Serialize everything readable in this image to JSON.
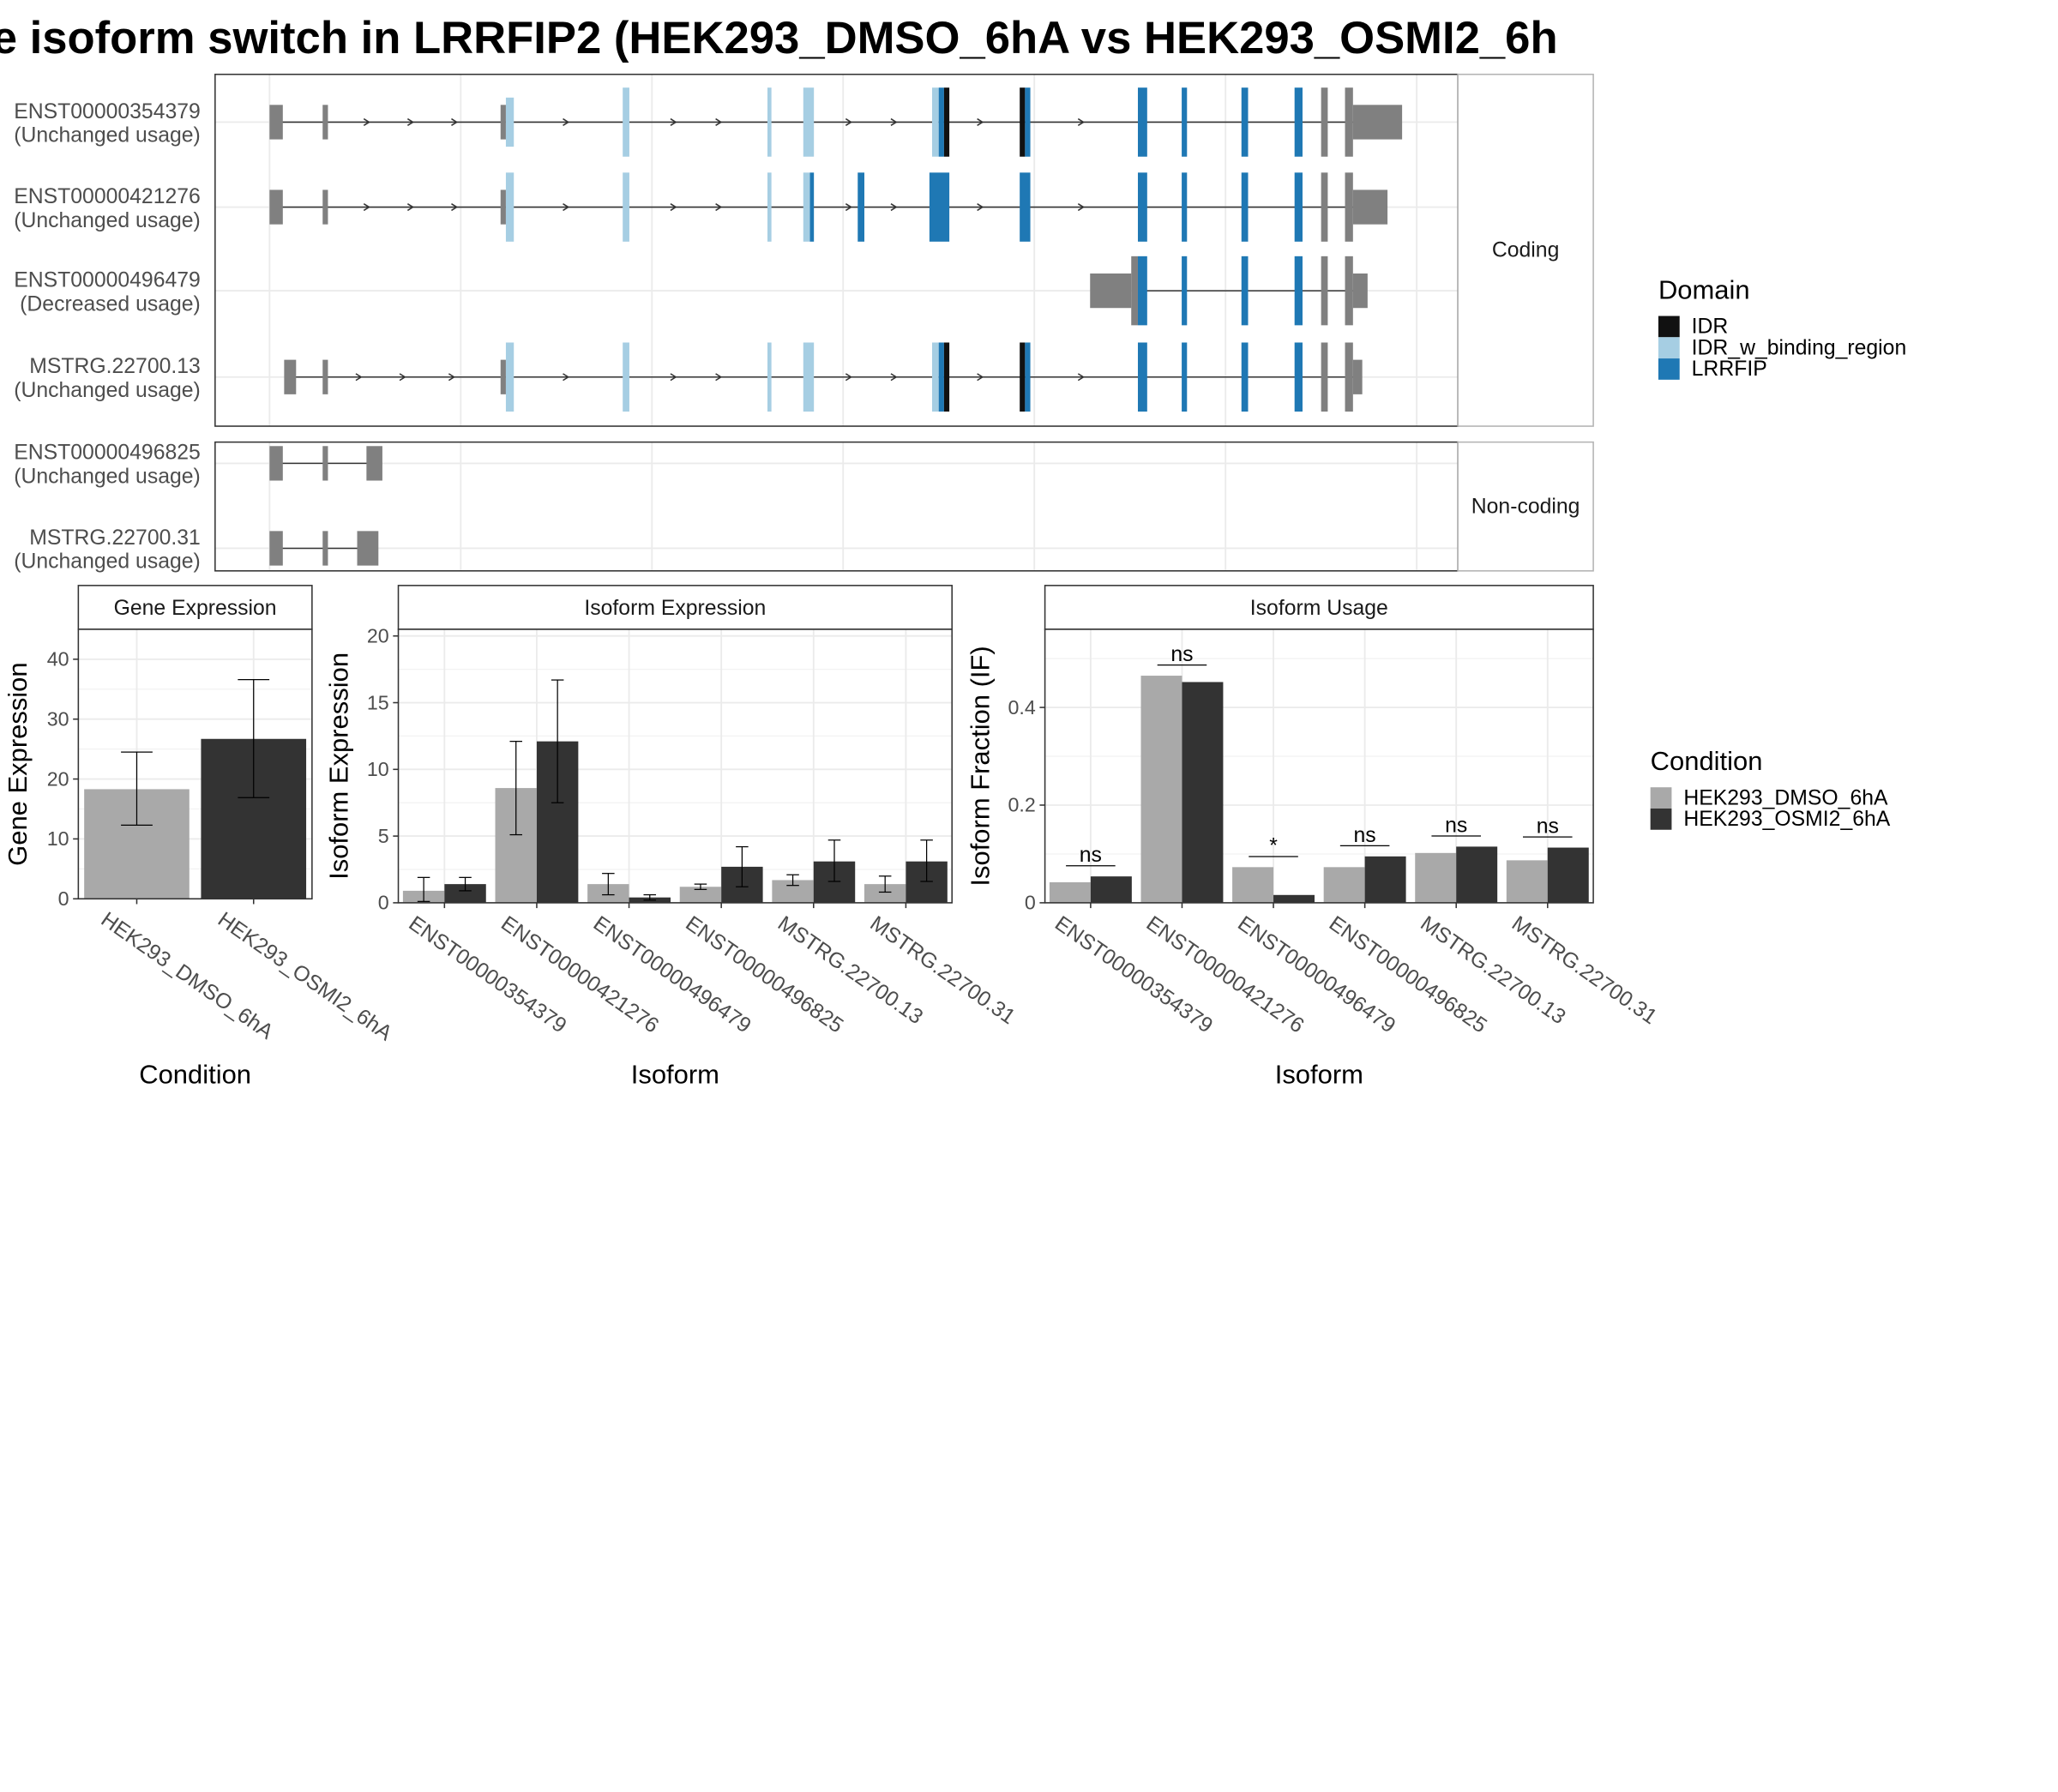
{
  "title": "e isoform switch in LRRFIP2 (HEK293_DMSO_6hA vs HEK293_OSMI2_6h",
  "colors": {
    "IDR": "#111111",
    "IDR_w_binding_region": "#a6cee3",
    "LRRFIP": "#1f78b4",
    "exon": "#808080",
    "DMSO": "#a9a9a9",
    "OSMI2": "#333333"
  },
  "structure": {
    "coding_label": "Coding",
    "noncoding_label": "Non-coding",
    "coding": [
      {
        "id": "ENST00000354379",
        "usage": "(Unchanged usage)"
      },
      {
        "id": "ENST00000421276",
        "usage": "(Unchanged usage)"
      },
      {
        "id": "ENST00000496479",
        "usage": "(Decreased usage)"
      },
      {
        "id": "MSTRG.22700.13",
        "usage": "(Unchanged usage)"
      }
    ],
    "noncoding": [
      {
        "id": "ENST00000496825",
        "usage": "(Unchanged usage)"
      },
      {
        "id": "MSTRG.22700.31",
        "usage": "(Unchanged usage)"
      }
    ]
  },
  "domain_legend": {
    "title": "Domain",
    "items": [
      "IDR",
      "IDR_w_binding_region",
      "LRRFIP"
    ]
  },
  "condition_legend": {
    "title": "Condition",
    "items": [
      "HEK293_DMSO_6hA",
      "HEK293_OSMI2_6hA"
    ]
  },
  "chart_data": [
    {
      "type": "bar",
      "title": "Gene Expression",
      "xlabel": "Condition",
      "ylabel": "Gene Expression",
      "ylim": [
        0,
        45
      ],
      "yticks": [
        0,
        10,
        20,
        30,
        40
      ],
      "categories": [
        "HEK293_DMSO_6hA",
        "HEK293_OSMI2_6hA"
      ],
      "values": [
        18.3,
        26.7
      ],
      "err_low": [
        12.3,
        16.9
      ],
      "err_high": [
        24.5,
        36.6
      ]
    },
    {
      "type": "bar",
      "title": "Isoform Expression",
      "xlabel": "Isoform",
      "ylabel": "Isoform Expression",
      "ylim": [
        0,
        20.5
      ],
      "yticks": [
        0,
        5,
        10,
        15,
        20
      ],
      "categories": [
        "ENST00000354379",
        "ENST00000421276",
        "ENST00000496479",
        "ENST00000496825",
        "MSTRG.22700.13",
        "MSTRG.22700.31"
      ],
      "series": [
        {
          "name": "HEK293_DMSO_6hA",
          "values": [
            0.9,
            8.6,
            1.4,
            1.2,
            1.7,
            1.4
          ],
          "err_low": [
            0.1,
            5.1,
            0.6,
            1.0,
            1.3,
            0.8
          ],
          "err_high": [
            1.9,
            12.1,
            2.2,
            1.4,
            2.1,
            2.0
          ]
        },
        {
          "name": "HEK293_OSMI2_6hA",
          "values": [
            1.4,
            12.1,
            0.4,
            2.7,
            3.1,
            3.1
          ],
          "err_low": [
            0.9,
            7.5,
            0.2,
            1.2,
            1.6,
            1.6
          ],
          "err_high": [
            1.9,
            16.7,
            0.6,
            4.2,
            4.7,
            4.7
          ]
        }
      ]
    },
    {
      "type": "bar",
      "title": "Isoform Usage",
      "xlabel": "Isoform",
      "ylabel": "Isoform Fraction (IF)",
      "ylim": [
        0,
        0.56
      ],
      "yticks": [
        0.0,
        0.2,
        0.4
      ],
      "categories": [
        "ENST00000354379",
        "ENST00000421276",
        "ENST00000496479",
        "ENST00000496825",
        "MSTRG.22700.13",
        "MSTRG.22700.31"
      ],
      "series": [
        {
          "name": "HEK293_DMSO_6hA",
          "values": [
            0.042,
            0.465,
            0.073,
            0.073,
            0.102,
            0.087
          ]
        },
        {
          "name": "HEK293_OSMI2_6hA",
          "values": [
            0.054,
            0.452,
            0.016,
            0.095,
            0.115,
            0.113
          ]
        }
      ],
      "significance": [
        "ns",
        "ns",
        "*",
        "ns",
        "ns",
        "ns"
      ]
    }
  ]
}
